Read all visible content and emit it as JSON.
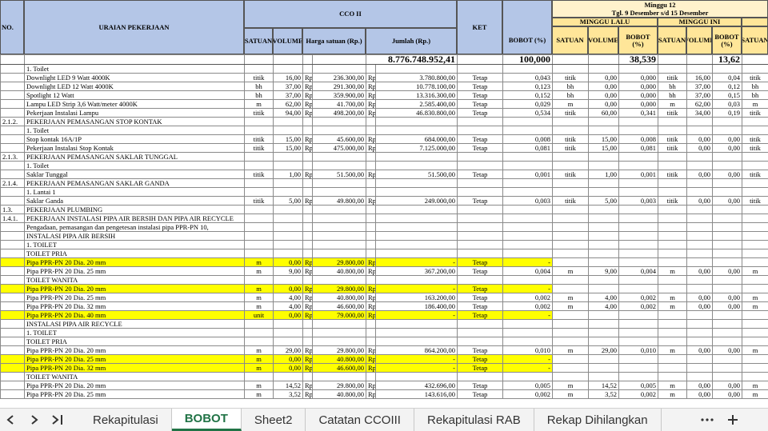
{
  "header": {
    "no": "NO.",
    "uraian": "URAIAN PEKERJAAN",
    "cco": "CCO II",
    "satuan": "SATUAN",
    "volume": "VOLUME",
    "harga": "Harga satuan (Rp.)",
    "jumlah": "Jumlah (Rp.)",
    "ket": "KET",
    "bobot": "BOBOT (%)",
    "minggu": "Minggu 12",
    "tanggal": "Tgl. 9 Desember  s/d 15 Desember",
    "minggu_lalu": "MINGGU LALU",
    "minggu_ini": "MINGGU INI",
    "ml_satuan": "SATUAN",
    "ml_volume": "VOLUME",
    "ml_bobot": "BOBOT (%)",
    "mi_satuan": "SATUAN",
    "mi_volume": "VOLUME",
    "mi_bobot": "BOBOT (%)",
    "next_satuan": "SATUAN"
  },
  "total": {
    "jumlah": "8.776.748.952,41",
    "bobot": "100,000",
    "minggu_lalu_bobot": "38,539",
    "minggu_ini_bobot": "13,62"
  },
  "rows": [
    {
      "cells": [
        null,
        "1. Toilet",
        null,
        null,
        null,
        null,
        null,
        null,
        null,
        null,
        null,
        null,
        null,
        null,
        null,
        null,
        null
      ]
    },
    {
      "cells": [
        null,
        "Downlight LED 9 Watt 4000K",
        "titik",
        "16,00",
        "Rp",
        "236.300,00",
        "Rp",
        "3.780.800,00",
        "Tetap",
        "0,043",
        "titik",
        "0,00",
        "0,000",
        "titik",
        "16,00",
        "0,04",
        "titik"
      ]
    },
    {
      "cells": [
        null,
        "Downlight LED 12 Watt 4000K",
        "bh",
        "37,00",
        "Rp",
        "291.300,00",
        "Rp",
        "10.778.100,00",
        "Tetap",
        "0,123",
        "bh",
        "0,00",
        "0,000",
        "bh",
        "37,00",
        "0,12",
        "bh"
      ]
    },
    {
      "cells": [
        null,
        "Spotlight 12 Watt",
        "bh",
        "37,00",
        "Rp",
        "359.900,00",
        "Rp",
        "13.316.300,00",
        "Tetap",
        "0,152",
        "bh",
        "0,00",
        "0,000",
        "bh",
        "37,00",
        "0,15",
        "bh"
      ]
    },
    {
      "cells": [
        null,
        "Lampu LED Strip 3,6 Watt/meter 4000K",
        "m",
        "62,00",
        "Rp",
        "41.700,00",
        "Rp",
        "2.585.400,00",
        "Tetap",
        "0,029",
        "m",
        "0,00",
        "0,000",
        "m",
        "62,00",
        "0,03",
        "m"
      ]
    },
    {
      "cells": [
        null,
        "Pekerjaan Instalasi Lampu",
        "titik",
        "94,00",
        "Rp",
        "498.200,00",
        "Rp",
        "46.830.800,00",
        "Tetap",
        "0,534",
        "titik",
        "60,00",
        "0,341",
        "titik",
        "34,00",
        "0,19",
        "titik"
      ]
    },
    {
      "cells": [
        "2.1.2.",
        "PEKERJAAN PEMASANGAN STOP KONTAK",
        null,
        null,
        null,
        null,
        null,
        null,
        null,
        null,
        null,
        null,
        null,
        null,
        null,
        null,
        null
      ]
    },
    {
      "cells": [
        null,
        "1. Toilet",
        null,
        null,
        null,
        null,
        null,
        null,
        null,
        null,
        null,
        null,
        null,
        null,
        null,
        null,
        null
      ]
    },
    {
      "cells": [
        null,
        "Stop kontak 16A/1P",
        "titik",
        "15,00",
        "Rp",
        "45.600,00",
        "Rp",
        "684.000,00",
        "Tetap",
        "0,008",
        "titik",
        "15,00",
        "0,008",
        "titik",
        "0,00",
        "0,00",
        "titik"
      ]
    },
    {
      "cells": [
        null,
        "Pekerjaan Instalasi Stop Kontak",
        "titik",
        "15,00",
        "Rp",
        "475.000,00",
        "Rp",
        "7.125.000,00",
        "Tetap",
        "0,081",
        "titik",
        "15,00",
        "0,081",
        "titik",
        "0,00",
        "0,00",
        "titik"
      ]
    },
    {
      "cells": [
        "2.1.3.",
        "PEKERJAAN PEMASANGAN SAKLAR TUNGGAL",
        null,
        null,
        null,
        null,
        null,
        null,
        null,
        null,
        null,
        null,
        null,
        null,
        null,
        null,
        null
      ]
    },
    {
      "cells": [
        null,
        "1. Toilet",
        null,
        null,
        null,
        null,
        null,
        null,
        null,
        null,
        null,
        null,
        null,
        null,
        null,
        null,
        null
      ]
    },
    {
      "cells": [
        null,
        "Saklar Tunggal",
        "titik",
        "1,00",
        "Rp",
        "51.500,00",
        "Rp",
        "51.500,00",
        "Tetap",
        "0,001",
        "titik",
        "1,00",
        "0,001",
        "titik",
        "0,00",
        "0,00",
        "titik"
      ]
    },
    {
      "cells": [
        "2.1.4.",
        "PEKERJAAN PEMASANGAN SAKLAR GANDA",
        null,
        null,
        null,
        null,
        null,
        null,
        null,
        null,
        null,
        null,
        null,
        null,
        null,
        null,
        null
      ]
    },
    {
      "cells": [
        null,
        "1. Lantai 1",
        null,
        null,
        null,
        null,
        null,
        null,
        null,
        null,
        null,
        null,
        null,
        null,
        null,
        null,
        null
      ]
    },
    {
      "cells": [
        null,
        "Saklar Ganda",
        "titik",
        "5,00",
        "Rp",
        "49.800,00",
        "Rp",
        "249.000,00",
        "Tetap",
        "0,003",
        "titik",
        "5,00",
        "0,003",
        "titik",
        "0,00",
        "0,00",
        "titik"
      ]
    },
    {
      "cells": [
        "1.3.",
        "PEKERJAAN PLUMBING",
        null,
        null,
        null,
        null,
        null,
        null,
        null,
        null,
        null,
        null,
        null,
        null,
        null,
        null,
        null
      ]
    },
    {
      "cells": [
        "1.4.1.",
        "PEKERJAAN INSTALASI PIPA AIR BERSIH DAN PIPA AIR RECYCLE",
        null,
        null,
        null,
        null,
        null,
        null,
        null,
        null,
        null,
        null,
        null,
        null,
        null,
        null,
        null
      ]
    },
    {
      "cells": [
        null,
        "Pengadaan, pemasangan dan pengetesan instalasi pipa PPR-PN 10,",
        null,
        null,
        null,
        null,
        null,
        null,
        null,
        null,
        null,
        null,
        null,
        null,
        null,
        null,
        null
      ]
    },
    {
      "cells": [
        null,
        "INSTALASI PIPA AIR BERSIH",
        null,
        null,
        null,
        null,
        null,
        null,
        null,
        null,
        null,
        null,
        null,
        null,
        null,
        null,
        null
      ]
    },
    {
      "cells": [
        null,
        "1. TOILET",
        null,
        null,
        null,
        null,
        null,
        null,
        null,
        null,
        null,
        null,
        null,
        null,
        null,
        null,
        null
      ]
    },
    {
      "cells": [
        null,
        "TOILET PRIA",
        null,
        null,
        null,
        null,
        null,
        null,
        null,
        null,
        null,
        null,
        null,
        null,
        null,
        null,
        null
      ]
    },
    {
      "highlight": true,
      "cells": [
        null,
        "Pipa PPR-PN 20 Dia. 20 mm",
        "m",
        "0,00",
        "Rp",
        "29.800,00",
        "Rp",
        "-",
        "Tetap",
        "-",
        null,
        null,
        null,
        null,
        null,
        null,
        null
      ]
    },
    {
      "cells": [
        null,
        "Pipa PPR-PN 20 Dia. 25 mm",
        "m",
        "9,00",
        "Rp",
        "40.800,00",
        "Rp",
        "367.200,00",
        "Tetap",
        "0,004",
        "m",
        "9,00",
        "0,004",
        "m",
        "0,00",
        "0,00",
        "m"
      ]
    },
    {
      "cells": [
        null,
        "TOILET WANITA",
        null,
        null,
        null,
        null,
        null,
        null,
        null,
        null,
        null,
        null,
        null,
        null,
        null,
        null,
        null
      ]
    },
    {
      "highlight": true,
      "cells": [
        null,
        "Pipa PPR-PN 20 Dia. 20 mm",
        "m",
        "0,00",
        "Rp",
        "29.800,00",
        "Rp",
        "-",
        "Tetap",
        "-",
        null,
        null,
        null,
        null,
        null,
        null,
        null
      ]
    },
    {
      "cells": [
        null,
        "Pipa PPR-PN 20 Dia. 25 mm",
        "m",
        "4,00",
        "Rp",
        "40.800,00",
        "Rp",
        "163.200,00",
        "Tetap",
        "0,002",
        "m",
        "4,00",
        "0,002",
        "m",
        "0,00",
        "0,00",
        "m"
      ]
    },
    {
      "cells": [
        null,
        "Pipa PPR-PN 20 Dia. 32 mm",
        "m",
        "4,00",
        "Rp",
        "46.600,00",
        "Rp",
        "186.400,00",
        "Tetap",
        "0,002",
        "m",
        "4,00",
        "0,002",
        "m",
        "0,00",
        "0,00",
        "m"
      ]
    },
    {
      "highlight": true,
      "cells": [
        null,
        "Pipa PPR-PN 20 Dia. 40 mm",
        "unit",
        "0,00",
        "Rp",
        "79.000,00",
        "Rp",
        "-",
        "Tetap",
        "-",
        null,
        null,
        null,
        null,
        null,
        null,
        null
      ]
    },
    {
      "cells": [
        null,
        "INSTALASI PIPA AIR RECYCLE",
        null,
        null,
        null,
        null,
        null,
        null,
        null,
        null,
        null,
        null,
        null,
        null,
        null,
        null,
        null
      ]
    },
    {
      "cells": [
        null,
        "1. TOILET",
        null,
        null,
        null,
        null,
        null,
        null,
        null,
        null,
        null,
        null,
        null,
        null,
        null,
        null,
        null
      ]
    },
    {
      "cells": [
        null,
        "TOILET PRIA",
        null,
        null,
        null,
        null,
        null,
        null,
        null,
        null,
        null,
        null,
        null,
        null,
        null,
        null,
        null
      ]
    },
    {
      "cells": [
        null,
        "Pipa PPR-PN 20 Dia. 20 mm",
        "m",
        "29,00",
        "Rp",
        "29.800,00",
        "Rp",
        "864.200,00",
        "Tetap",
        "0,010",
        "m",
        "29,00",
        "0,010",
        "m",
        "0,00",
        "0,00",
        "m"
      ]
    },
    {
      "highlight": true,
      "cells": [
        null,
        "Pipa PPR-PN 20 Dia. 25 mm",
        "m",
        "0,00",
        "Rp",
        "40.800,00",
        "Rp",
        "-",
        "Tetap",
        "-",
        null,
        null,
        null,
        null,
        null,
        null,
        null
      ]
    },
    {
      "highlight": true,
      "cells": [
        null,
        "Pipa PPR-PN 20 Dia. 32 mm",
        "m",
        "0,00",
        "Rp",
        "46.600,00",
        "Rp",
        "-",
        "Tetap",
        "-",
        null,
        null,
        null,
        null,
        null,
        null,
        null
      ]
    },
    {
      "cells": [
        null,
        "TOILET WANITA",
        null,
        null,
        null,
        null,
        null,
        null,
        null,
        null,
        null,
        null,
        null,
        null,
        null,
        null,
        null
      ]
    },
    {
      "cells": [
        null,
        "Pipa PPR-PN 20 Dia. 20 mm",
        "m",
        "14,52",
        "Rp",
        "29.800,00",
        "Rp",
        "432.696,00",
        "Tetap",
        "0,005",
        "m",
        "14,52",
        "0,005",
        "m",
        "0,00",
        "0,00",
        "m"
      ]
    },
    {
      "cells": [
        null,
        "Pipa PPR-PN 20 Dia. 25 mm",
        "m",
        "3,52",
        "Rp",
        "40.800,00",
        "Rp",
        "143.616,00",
        "Tetap",
        "0,002",
        "m",
        "3,52",
        "0,002",
        "m",
        "0,00",
        "0,00",
        "m"
      ]
    }
  ],
  "tabs": [
    {
      "label": "Rekapitulasi"
    },
    {
      "label": "BOBOT",
      "active": true
    },
    {
      "label": "Sheet2"
    },
    {
      "label": "Catatan CCOIII"
    },
    {
      "label": "Rekapitulasi RAB"
    },
    {
      "label": "Rekap Dihilangkan"
    }
  ]
}
